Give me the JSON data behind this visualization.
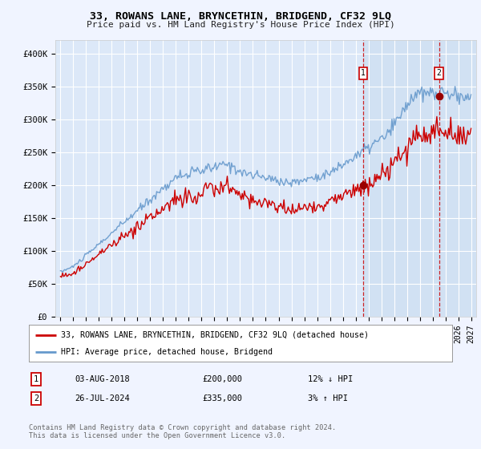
{
  "title": "33, ROWANS LANE, BRYNCETHIN, BRIDGEND, CF32 9LQ",
  "subtitle": "Price paid vs. HM Land Registry's House Price Index (HPI)",
  "background_color": "#f0f4ff",
  "plot_bg_color": "#dce8f8",
  "highlight_bg_color": "#c8dcf0",
  "grid_color": "#ffffff",
  "hpi_color": "#6699cc",
  "price_color": "#cc0000",
  "ylim": [
    0,
    420000
  ],
  "yticks": [
    0,
    50000,
    100000,
    150000,
    200000,
    250000,
    300000,
    350000,
    400000
  ],
  "ytick_labels": [
    "£0",
    "£50K",
    "£100K",
    "£150K",
    "£200K",
    "£250K",
    "£300K",
    "£350K",
    "£400K"
  ],
  "sale1_date": "03-AUG-2018",
  "sale1_price": 200000,
  "sale1_pct": "12% ↓ HPI",
  "sale2_date": "26-JUL-2024",
  "sale2_price": 335000,
  "sale2_pct": "3% ↑ HPI",
  "legend_line1": "33, ROWANS LANE, BRYNCETHIN, BRIDGEND, CF32 9LQ (detached house)",
  "legend_line2": "HPI: Average price, detached house, Bridgend",
  "footer": "Contains HM Land Registry data © Crown copyright and database right 2024.\nThis data is licensed under the Open Government Licence v3.0.",
  "sale1_x": 2018.583,
  "sale2_x": 2024.5,
  "highlight_start": 2018.583,
  "hatch_start": 2024.5,
  "xmin": 1994.6,
  "xmax": 2027.4
}
